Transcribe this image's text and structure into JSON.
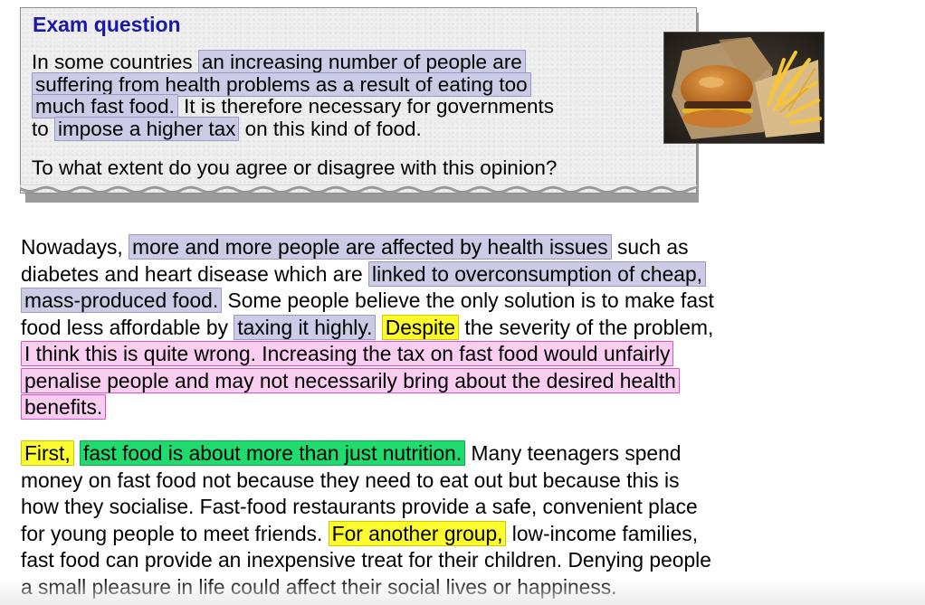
{
  "exam": {
    "title": "Exam question",
    "lines": [
      [
        {
          "t": "In some countries "
        },
        {
          "t": "an increasing number of people are",
          "h": "lav"
        }
      ],
      [
        {
          "t": "suffering from health problems as a result of eating too",
          "h": "lav"
        }
      ],
      [
        {
          "t": "much fast food.",
          "h": "lav"
        },
        {
          "t": " It is therefore necessary for governments"
        }
      ],
      [
        {
          "t": "to "
        },
        {
          "t": "impose a higher tax",
          "h": "lav"
        },
        {
          "t": " on this kind of food."
        }
      ]
    ],
    "question": "To what extent do you agree or disagree with this opinion?",
    "image": "burger-and-fries-photo"
  },
  "essay": {
    "paragraph1": [
      [
        {
          "t": "Nowadays, "
        },
        {
          "t": "more and more people are affected by health issues",
          "h": "lav"
        },
        {
          "t": " such as"
        }
      ],
      [
        {
          "t": "diabetes and heart disease which are "
        },
        {
          "t": "linked to overconsumption of cheap,",
          "h": "lav"
        }
      ],
      [
        {
          "t": "mass-produced food.",
          "h": "lav"
        },
        {
          "t": " Some people believe the only solution is to make fast"
        }
      ],
      [
        {
          "t": "food less affordable by "
        },
        {
          "t": "taxing it highly.",
          "h": "lav"
        },
        {
          "t": " "
        },
        {
          "t": "Despite",
          "h": "yel"
        },
        {
          "t": " the severity of the problem,"
        }
      ],
      [
        {
          "t": "I think this is quite wrong. Increasing the tax on fast food would unfairly",
          "h": "pink"
        }
      ],
      [
        {
          "t": "penalise people and may not necessarily bring about the desired health",
          "h": "pink"
        }
      ],
      [
        {
          "t": "benefits.",
          "h": "pink"
        }
      ]
    ],
    "paragraph2": [
      [
        {
          "t": "First,",
          "h": "yel"
        },
        {
          "t": " "
        },
        {
          "t": "fast food is about more than just nutrition.",
          "h": "grn"
        },
        {
          "t": " Many teenagers spend"
        }
      ],
      [
        {
          "t": "money on fast food not because they need to eat out but because this is"
        }
      ],
      [
        {
          "t": "how they socialise. Fast-food restaurants provide a safe, convenient place"
        }
      ],
      [
        {
          "t": "for young people to meet friends. "
        },
        {
          "t": "For another group,",
          "h": "yel"
        },
        {
          "t": " low-income families,"
        }
      ],
      [
        {
          "t": "fast food can provide an inexpensive treat for their children. Denying people"
        }
      ],
      [
        {
          "t": "a small pleasure in life could affect their social lives or happiness."
        }
      ]
    ]
  },
  "colors": {
    "title": "#1c19a8",
    "lavender_highlight": "#cbcbe6",
    "pink_highlight": "#f8cdf0",
    "yellow_highlight": "#fbfb2d",
    "green_highlight": "#1fda6c"
  }
}
